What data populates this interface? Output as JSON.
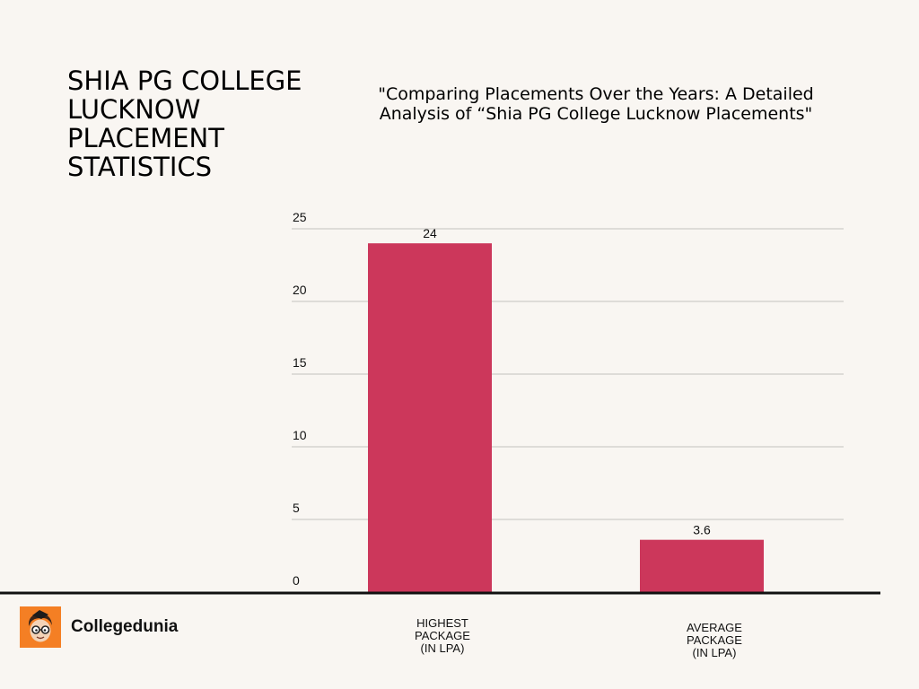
{
  "page": {
    "heading": "SHIA PG COLLEGE LUCKNOW PLACEMENT STATISTICS",
    "brand_name": "Collegedunia"
  },
  "colors": {
    "background": "#f9f6f2",
    "bar": "#cc375b",
    "gridline": "#c4c1bd",
    "baseline": "#111111",
    "logo_bg": "#f47f24"
  },
  "chart_data": {
    "type": "bar",
    "title": "\"Comparing Placements Over the Years: A Detailed Analysis of “Shia PG College Lucknow Placements\"",
    "categories": [
      [
        "HIGHEST",
        "PACKAGE",
        " (IN LPA)"
      ],
      [
        "AVERAGE",
        "PACKAGE",
        " (IN LPA)"
      ]
    ],
    "values": [
      24,
      3.6
    ],
    "data_labels": [
      "24",
      "3.6"
    ],
    "yticks": [
      0,
      5,
      10,
      15,
      20,
      25
    ],
    "ylim": [
      0,
      25
    ],
    "grid": true,
    "xlabel": "",
    "ylabel": ""
  }
}
